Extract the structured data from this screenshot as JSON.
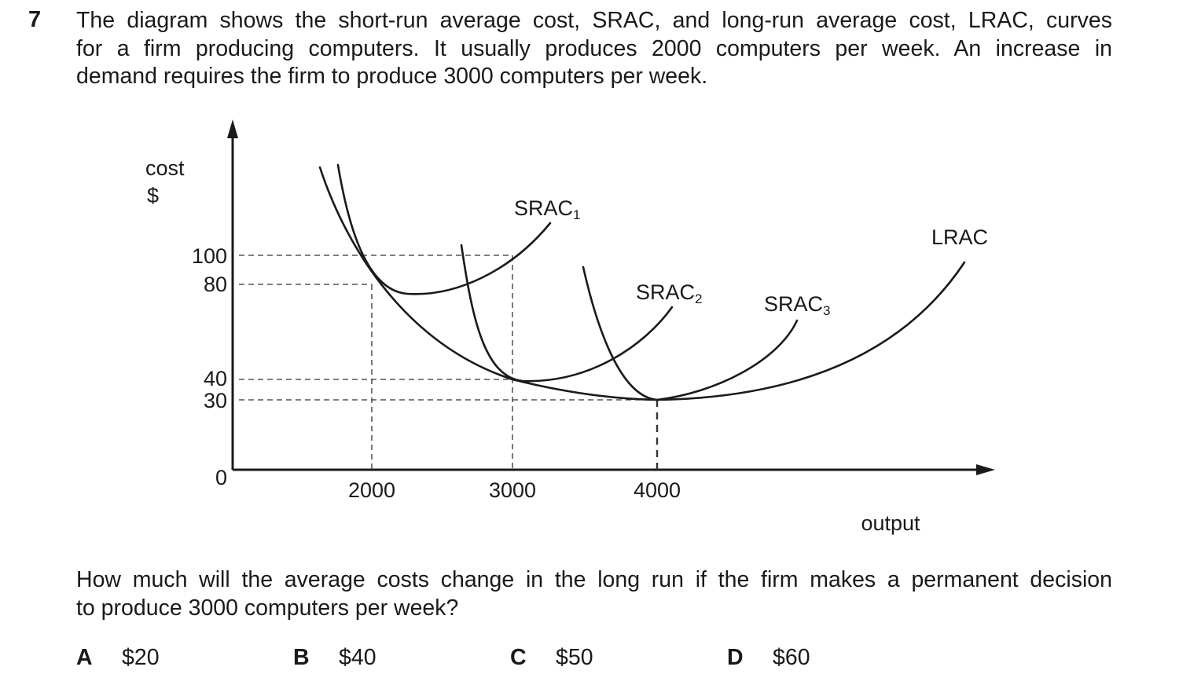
{
  "question": {
    "number": "7",
    "stem_lines": [
      "The diagram shows the short-run average cost, SRAC, and long-run average cost, LRAC, curves",
      "for a firm producing computers. It usually produces 2000 computers per week. An increase in",
      "demand requires the firm to produce 3000 computers per week."
    ],
    "prompt_lines": [
      "How much will the average costs change in the long run if the firm makes a permanent decision",
      "to produce 3000 computers per week?"
    ],
    "options": [
      {
        "letter": "A",
        "text": "$20"
      },
      {
        "letter": "B",
        "text": "$40"
      },
      {
        "letter": "C",
        "text": "$50"
      },
      {
        "letter": "D",
        "text": "$60"
      }
    ]
  },
  "diagram": {
    "y_axis_label_line1": "cost",
    "y_axis_label_line2": "$",
    "x_axis_label": "output",
    "origin_label": "0",
    "y_ticks": [
      "100",
      "80",
      "40",
      "30"
    ],
    "x_ticks": [
      "2000",
      "3000",
      "4000"
    ],
    "curve_labels": {
      "srac1": {
        "base": "SRAC",
        "sub": "1"
      },
      "srac2": {
        "base": "SRAC",
        "sub": "2"
      },
      "srac3": {
        "base": "SRAC",
        "sub": "3"
      },
      "lrac": "LRAC"
    }
  }
}
